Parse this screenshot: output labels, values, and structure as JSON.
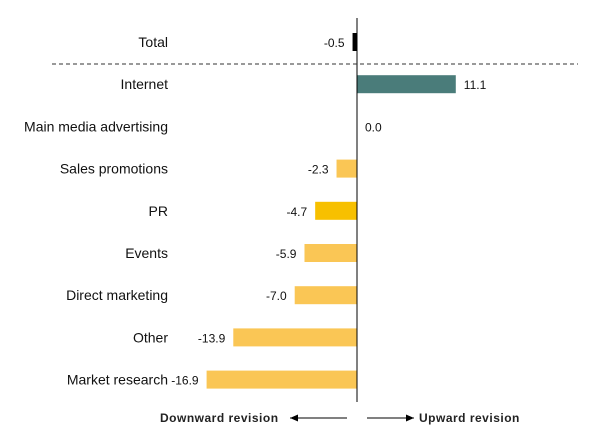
{
  "chart_data": {
    "type": "bar",
    "orientation": "horizontal",
    "title": "",
    "xlabel": "",
    "ylabel": "",
    "categories": [
      "Total",
      "Internet",
      "Main media advertising",
      "Sales promotions",
      "PR",
      "Events",
      "Direct marketing",
      "Other",
      "Market research"
    ],
    "values": [
      -0.5,
      11.1,
      0.0,
      -2.3,
      -4.7,
      -5.9,
      -7.0,
      -13.9,
      -16.9
    ],
    "value_labels": [
      "-0.5",
      "11.1",
      "0.0",
      "-2.3",
      "-4.7",
      "-5.9",
      "-7.0",
      "-13.9",
      "-16.9"
    ],
    "xlim": [
      -17,
      23
    ],
    "grid": false,
    "legend": "none",
    "separator_after": "Total",
    "direction_labels": {
      "downward": "Downward revision",
      "upward": "Upward revision"
    },
    "colors": {
      "total": "#000000",
      "internet": "#4a7c7a",
      "highlight": "#f7c000",
      "default": "#fac655"
    },
    "bar_colors": [
      "#000000",
      "#4a7c7a",
      "#fac655",
      "#fac655",
      "#f7c000",
      "#fac655",
      "#fac655",
      "#fac655",
      "#fac655"
    ]
  }
}
